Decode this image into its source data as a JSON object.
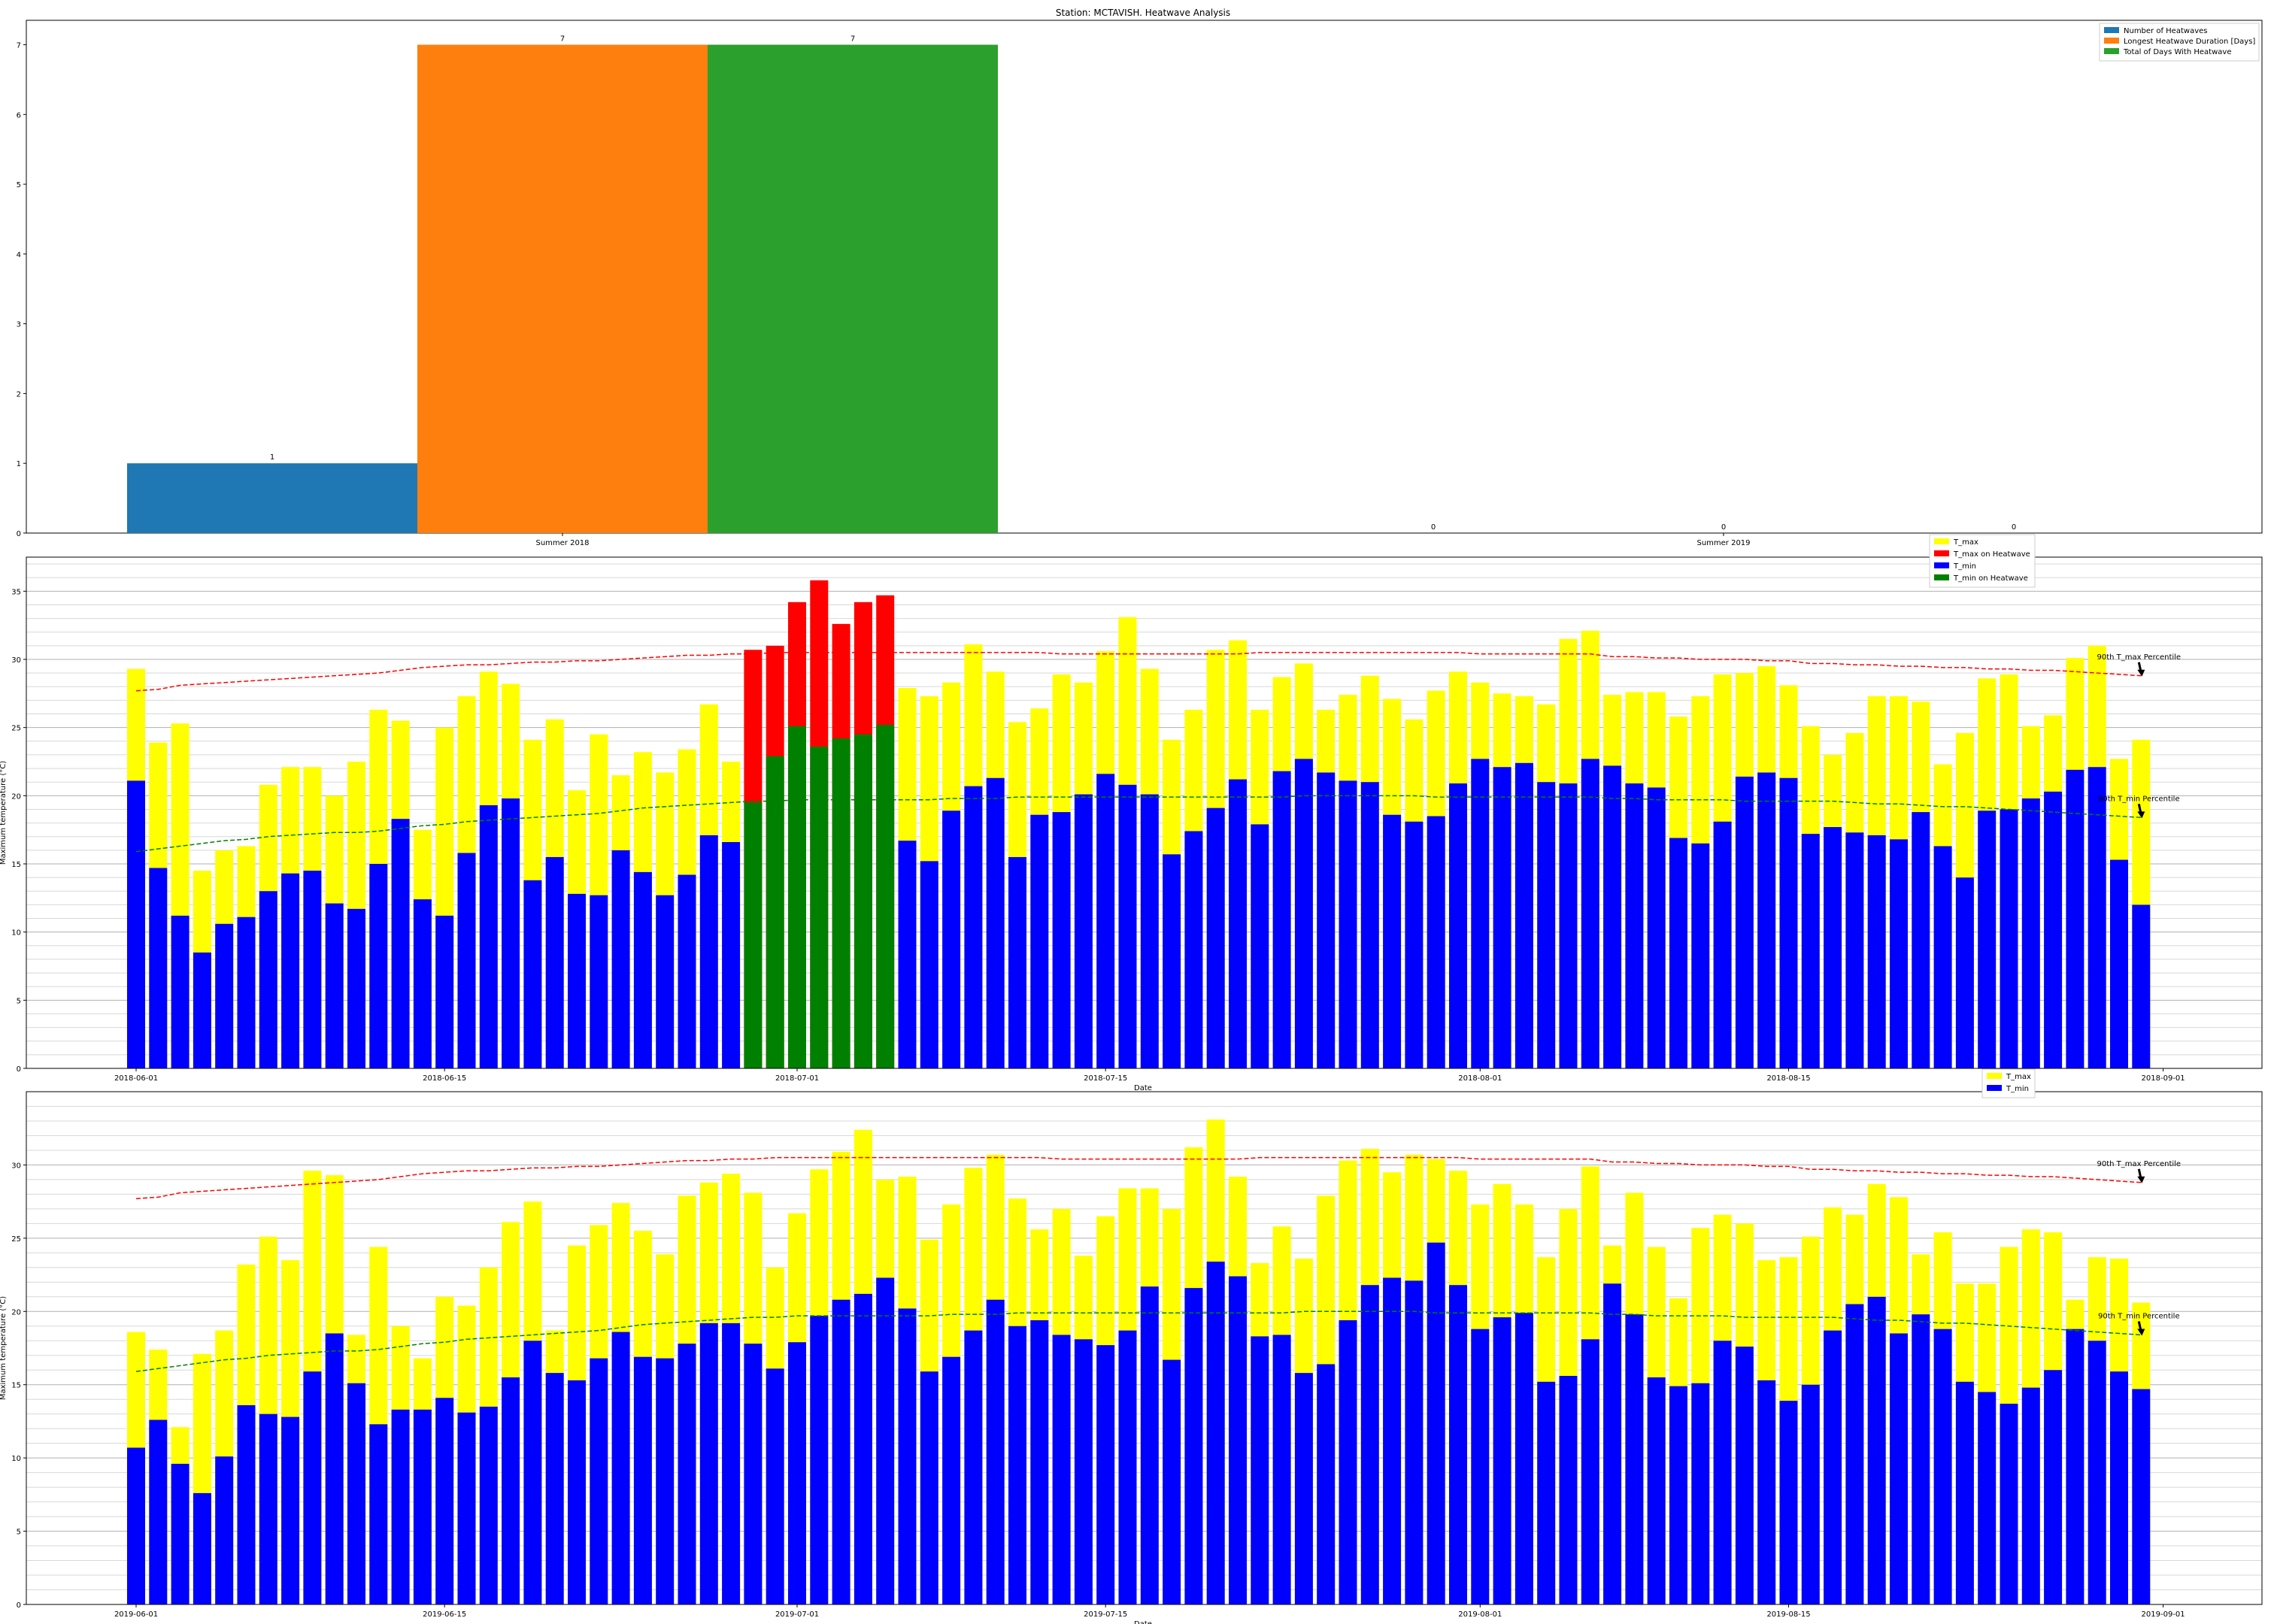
{
  "title": "Station: MCTAVISH. Heatwave Analysis",
  "colors": {
    "heatwaves": "#1f77b4",
    "duration": "#ff7f0e",
    "total_days": "#2ca02c",
    "tmax": "#ffff00",
    "tmax_hw": "#ff0000",
    "tmin": "#0000ff",
    "tmin_hw": "#008000",
    "tmax_p90": "#ff0000",
    "tmin_p90": "#008000"
  },
  "chart_data": [
    {
      "type": "bar",
      "categories": [
        "Summer 2018",
        "Summer 2019"
      ],
      "series": [
        {
          "name": "Number of Heatwaves",
          "values": [
            1,
            0
          ]
        },
        {
          "name": "Longest Heatwave Duration [Days]",
          "values": [
            7,
            0
          ]
        },
        {
          "name": "Total of Days With Heatwave",
          "values": [
            7,
            0
          ]
        }
      ],
      "ylim": [
        0,
        7.35
      ],
      "yticks": [
        0,
        1,
        2,
        3,
        4,
        5,
        6,
        7
      ],
      "legend": "top-right",
      "grid": false
    },
    {
      "type": "bar",
      "x_start": "2018-06-01",
      "xticks": [
        "2018-06-01",
        "2018-06-15",
        "2018-07-01",
        "2018-07-15",
        "2018-08-01",
        "2018-08-15",
        "2018-09-01"
      ],
      "xlabel": "Date",
      "ylabel": "Maximum temperature (°C)",
      "ylim": [
        0,
        37.5
      ],
      "yticks": [
        0,
        5,
        10,
        15,
        20,
        25,
        30,
        35
      ],
      "grid": true,
      "legend": "top-right",
      "legend_entries": [
        "T_max",
        "T_max on Heatwave",
        "T_min",
        "T_min on Heatwave"
      ],
      "heatwave_days": [
        "2018-06-29",
        "2018-06-30",
        "2018-07-01",
        "2018-07-02",
        "2018-07-03",
        "2018-07-04",
        "2018-07-05"
      ],
      "tmax": [
        29.3,
        23.9,
        25.3,
        14.5,
        16.0,
        16.3,
        20.8,
        22.1,
        22.1,
        20.0,
        22.5,
        26.3,
        25.5,
        17.5,
        25.0,
        27.3,
        29.1,
        28.2,
        24.1,
        25.6,
        20.4,
        24.5,
        21.5,
        23.2,
        21.7,
        23.4,
        26.7,
        22.5,
        30.7,
        31.0,
        34.2,
        35.8,
        32.6,
        34.2,
        34.7,
        27.9,
        27.3,
        28.3,
        31.1,
        29.1,
        25.4,
        26.4,
        28.9,
        28.3,
        30.6,
        33.1,
        29.3,
        24.1,
        26.3,
        30.7,
        31.4,
        26.3,
        28.7,
        29.7,
        26.3,
        27.4,
        28.8,
        27.1,
        25.6,
        27.7,
        29.1,
        28.3,
        27.5,
        27.3,
        26.7,
        31.5,
        32.1,
        27.4,
        27.6,
        27.6,
        25.8,
        27.3,
        28.9,
        29.0,
        29.5,
        28.1,
        25.1,
        23.0,
        24.6,
        27.3,
        27.3,
        26.9,
        22.3,
        24.6,
        28.6,
        28.9,
        25.1,
        25.9,
        30.1,
        31.0,
        22.7,
        24.1
      ],
      "tmin": [
        21.1,
        14.7,
        11.2,
        8.5,
        10.6,
        11.1,
        13.0,
        14.3,
        14.5,
        12.1,
        11.7,
        15.0,
        18.3,
        12.4,
        11.2,
        15.8,
        19.3,
        19.8,
        13.8,
        15.5,
        12.8,
        12.7,
        16.0,
        14.4,
        12.7,
        14.2,
        17.1,
        16.6,
        19.5,
        22.9,
        25.1,
        23.6,
        24.2,
        24.5,
        25.2,
        16.7,
        15.2,
        18.9,
        20.7,
        21.3,
        15.5,
        18.6,
        18.8,
        20.1,
        21.6,
        20.8,
        20.1,
        15.7,
        17.4,
        19.1,
        21.2,
        17.9,
        21.8,
        22.7,
        21.7,
        21.1,
        21.0,
        18.6,
        18.1,
        18.5,
        20.9,
        22.7,
        22.1,
        22.4,
        21.0,
        20.9,
        22.7,
        22.2,
        20.9,
        20.6,
        16.9,
        16.5,
        18.1,
        21.4,
        21.7,
        21.3,
        17.2,
        17.7,
        17.3,
        17.1,
        16.8,
        18.8,
        16.3,
        14.0,
        18.9,
        19.0,
        19.8,
        20.3,
        21.9,
        22.1,
        15.3,
        12.0
      ],
      "tmax_p90": [
        27.7,
        27.8,
        28.1,
        28.2,
        28.3,
        28.4,
        28.5,
        28.6,
        28.7,
        28.8,
        28.9,
        29.0,
        29.2,
        29.4,
        29.5,
        29.6,
        29.6,
        29.7,
        29.8,
        29.8,
        29.9,
        29.9,
        30.0,
        30.1,
        30.2,
        30.3,
        30.3,
        30.4,
        30.4,
        30.5,
        30.5,
        30.5,
        30.5,
        30.5,
        30.5,
        30.5,
        30.5,
        30.5,
        30.5,
        30.5,
        30.5,
        30.5,
        30.4,
        30.4,
        30.4,
        30.4,
        30.4,
        30.4,
        30.4,
        30.4,
        30.4,
        30.5,
        30.5,
        30.5,
        30.5,
        30.5,
        30.5,
        30.5,
        30.5,
        30.5,
        30.5,
        30.4,
        30.4,
        30.4,
        30.4,
        30.4,
        30.4,
        30.2,
        30.2,
        30.1,
        30.1,
        30.0,
        30.0,
        30.0,
        29.9,
        29.9,
        29.7,
        29.7,
        29.6,
        29.6,
        29.5,
        29.5,
        29.4,
        29.4,
        29.3,
        29.3,
        29.2,
        29.2,
        29.1,
        29.0,
        28.9,
        28.8
      ],
      "tmin_p90": [
        15.9,
        16.1,
        16.3,
        16.5,
        16.7,
        16.8,
        17.0,
        17.1,
        17.2,
        17.3,
        17.3,
        17.4,
        17.6,
        17.8,
        17.9,
        18.1,
        18.2,
        18.3,
        18.4,
        18.5,
        18.6,
        18.7,
        18.9,
        19.1,
        19.2,
        19.3,
        19.4,
        19.5,
        19.6,
        19.6,
        19.7,
        19.7,
        19.7,
        19.7,
        19.7,
        19.7,
        19.7,
        19.8,
        19.8,
        19.8,
        19.9,
        19.9,
        19.9,
        19.9,
        19.9,
        19.9,
        19.9,
        19.9,
        19.9,
        19.9,
        19.9,
        19.9,
        19.9,
        20.0,
        20.0,
        20.0,
        20.0,
        20.0,
        20.0,
        19.9,
        19.9,
        19.9,
        19.9,
        19.9,
        19.9,
        19.9,
        19.9,
        19.8,
        19.8,
        19.7,
        19.7,
        19.7,
        19.7,
        19.6,
        19.6,
        19.6,
        19.6,
        19.6,
        19.5,
        19.4,
        19.4,
        19.3,
        19.2,
        19.2,
        19.1,
        19.0,
        18.9,
        18.8,
        18.7,
        18.6,
        18.5,
        18.4
      ],
      "annotations": [
        "90th T_max Percentile",
        "90th T_min Percentile"
      ]
    },
    {
      "type": "bar",
      "x_start": "2019-06-01",
      "xticks": [
        "2019-06-01",
        "2019-06-15",
        "2019-07-01",
        "2019-07-15",
        "2019-08-01",
        "2019-08-15",
        "2019-09-01"
      ],
      "xlabel": "Date",
      "ylabel": "Maximum temperature (°C)",
      "ylim": [
        0,
        35
      ],
      "yticks": [
        0,
        5,
        10,
        15,
        20,
        25,
        30
      ],
      "grid": true,
      "legend": "top-right",
      "legend_entries": [
        "T_max",
        "T_min"
      ],
      "tmax": [
        18.6,
        17.4,
        12.1,
        17.1,
        18.7,
        23.2,
        25.1,
        23.5,
        29.6,
        29.3,
        18.4,
        24.4,
        19.0,
        16.8,
        21.0,
        20.4,
        23.0,
        26.1,
        27.5,
        18.7,
        24.5,
        25.9,
        27.4,
        25.5,
        23.9,
        27.9,
        28.8,
        29.4,
        28.1,
        23.0,
        26.7,
        29.7,
        30.9,
        32.4,
        29.0,
        29.2,
        24.9,
        27.3,
        29.8,
        30.7,
        27.7,
        25.6,
        27.0,
        23.8,
        26.5,
        28.4,
        28.4,
        27.0,
        31.2,
        33.1,
        29.2,
        23.3,
        25.8,
        23.6,
        27.9,
        30.3,
        31.1,
        29.5,
        30.7,
        30.4,
        29.6,
        27.3,
        28.7,
        27.3,
        23.7,
        27.0,
        29.9,
        24.5,
        28.1,
        24.4,
        20.9,
        25.7,
        26.6,
        26.0,
        23.5,
        23.7,
        25.1,
        27.1,
        26.6,
        28.7,
        27.8,
        23.9,
        25.4,
        21.9,
        21.9,
        24.4,
        25.6,
        25.4,
        20.8,
        23.7,
        23.6,
        20.6
      ],
      "tmin": [
        10.7,
        12.6,
        9.6,
        7.6,
        10.1,
        13.6,
        13.0,
        12.8,
        15.9,
        18.5,
        15.1,
        12.3,
        13.3,
        13.3,
        14.1,
        13.1,
        13.5,
        15.5,
        18.0,
        15.8,
        15.3,
        16.8,
        18.6,
        16.9,
        16.8,
        17.8,
        19.2,
        19.2,
        17.8,
        16.1,
        17.9,
        19.7,
        20.8,
        21.2,
        22.3,
        20.2,
        15.9,
        16.9,
        18.7,
        20.8,
        19.0,
        19.4,
        18.4,
        18.1,
        17.7,
        18.7,
        21.7,
        16.7,
        21.6,
        23.4,
        22.4,
        18.3,
        18.4,
        15.8,
        16.4,
        19.4,
        21.8,
        22.3,
        22.1,
        24.7,
        21.8,
        18.8,
        19.6,
        19.9,
        15.2,
        15.6,
        18.1,
        21.9,
        19.8,
        15.5,
        14.9,
        15.1,
        18.0,
        17.6,
        15.3,
        13.9,
        15.0,
        18.7,
        20.5,
        21.0,
        18.5,
        19.8,
        18.8,
        15.2,
        14.5,
        13.7,
        14.8,
        16.0,
        18.8,
        18.0,
        15.9,
        14.7
      ],
      "tmax_p90": [
        27.7,
        27.8,
        28.1,
        28.2,
        28.3,
        28.4,
        28.5,
        28.6,
        28.7,
        28.8,
        28.9,
        29.0,
        29.2,
        29.4,
        29.5,
        29.6,
        29.6,
        29.7,
        29.8,
        29.8,
        29.9,
        29.9,
        30.0,
        30.1,
        30.2,
        30.3,
        30.3,
        30.4,
        30.4,
        30.5,
        30.5,
        30.5,
        30.5,
        30.5,
        30.5,
        30.5,
        30.5,
        30.5,
        30.5,
        30.5,
        30.5,
        30.5,
        30.4,
        30.4,
        30.4,
        30.4,
        30.4,
        30.4,
        30.4,
        30.4,
        30.4,
        30.5,
        30.5,
        30.5,
        30.5,
        30.5,
        30.5,
        30.5,
        30.5,
        30.5,
        30.5,
        30.4,
        30.4,
        30.4,
        30.4,
        30.4,
        30.4,
        30.2,
        30.2,
        30.1,
        30.1,
        30.0,
        30.0,
        30.0,
        29.9,
        29.9,
        29.7,
        29.7,
        29.6,
        29.6,
        29.5,
        29.5,
        29.4,
        29.4,
        29.3,
        29.3,
        29.2,
        29.2,
        29.1,
        29.0,
        28.9,
        28.8
      ],
      "tmin_p90": [
        15.9,
        16.1,
        16.3,
        16.5,
        16.7,
        16.8,
        17.0,
        17.1,
        17.2,
        17.3,
        17.3,
        17.4,
        17.6,
        17.8,
        17.9,
        18.1,
        18.2,
        18.3,
        18.4,
        18.5,
        18.6,
        18.7,
        18.9,
        19.1,
        19.2,
        19.3,
        19.4,
        19.5,
        19.6,
        19.6,
        19.7,
        19.7,
        19.7,
        19.7,
        19.7,
        19.7,
        19.7,
        19.8,
        19.8,
        19.8,
        19.9,
        19.9,
        19.9,
        19.9,
        19.9,
        19.9,
        19.9,
        19.9,
        19.9,
        19.9,
        19.9,
        19.9,
        19.9,
        20.0,
        20.0,
        20.0,
        20.0,
        20.0,
        20.0,
        19.9,
        19.9,
        19.9,
        19.9,
        19.9,
        19.9,
        19.9,
        19.9,
        19.8,
        19.8,
        19.7,
        19.7,
        19.7,
        19.7,
        19.6,
        19.6,
        19.6,
        19.6,
        19.6,
        19.5,
        19.4,
        19.4,
        19.3,
        19.2,
        19.2,
        19.1,
        19.0,
        18.9,
        18.8,
        18.7,
        18.6,
        18.5,
        18.4
      ],
      "annotations": [
        "90th T_max Percentile",
        "90th T_min Percentile"
      ]
    }
  ]
}
